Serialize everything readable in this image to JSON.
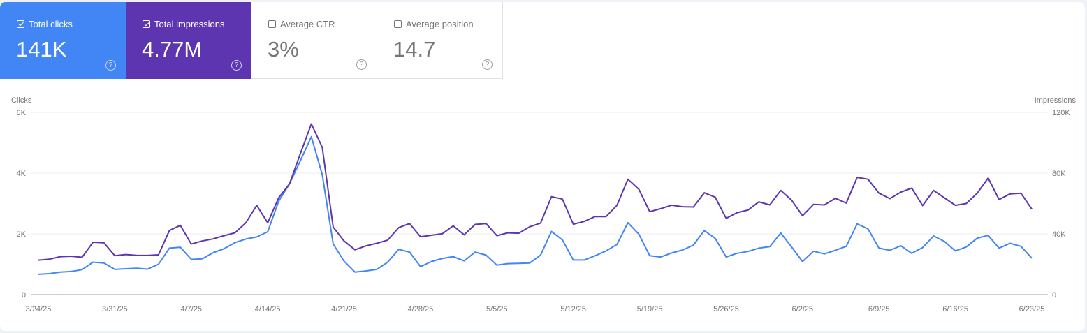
{
  "metrics": [
    {
      "label": "Total clicks",
      "value": "141K",
      "checked": true,
      "color": "#4285f4"
    },
    {
      "label": "Total impressions",
      "value": "4.77M",
      "checked": true,
      "color": "#5e35b1"
    },
    {
      "label": "Average CTR",
      "value": "3%",
      "checked": false
    },
    {
      "label": "Average position",
      "value": "14.7",
      "checked": false
    }
  ],
  "help_icon": "?",
  "chart_data": {
    "type": "line",
    "x_start": "3/24/25",
    "x_end": "6/23/25",
    "x_tick_labels": [
      "3/24/25",
      "3/31/25",
      "4/7/25",
      "4/14/25",
      "4/21/25",
      "4/28/25",
      "5/5/25",
      "5/12/25",
      "5/19/25",
      "5/26/25",
      "6/2/25",
      "6/9/25",
      "6/16/25",
      "6/23/25"
    ],
    "left_axis": {
      "label": "Clicks",
      "ylim": [
        0,
        6000
      ],
      "tick_labels": [
        "0",
        "2K",
        "4K",
        "6K"
      ]
    },
    "right_axis": {
      "label": "Impressions",
      "ylim": [
        0,
        120000
      ],
      "tick_labels": [
        "0",
        "40K",
        "80K",
        "120K"
      ]
    },
    "grid": true,
    "series": [
      {
        "name": "Clicks",
        "axis": "left",
        "color": "#4285f4",
        "values": [
          670,
          690,
          740,
          760,
          820,
          1070,
          1040,
          830,
          850,
          870,
          840,
          1000,
          1530,
          1560,
          1160,
          1180,
          1380,
          1510,
          1710,
          1830,
          1900,
          2070,
          3070,
          3650,
          4410,
          5200,
          3950,
          1670,
          1100,
          740,
          780,
          830,
          1070,
          1490,
          1400,
          920,
          1090,
          1190,
          1250,
          1110,
          1400,
          1300,
          970,
          1020,
          1030,
          1040,
          1300,
          2080,
          1800,
          1140,
          1140,
          1280,
          1440,
          1650,
          2370,
          1990,
          1280,
          1240,
          1370,
          1470,
          1630,
          2110,
          1850,
          1240,
          1360,
          1420,
          1530,
          1580,
          2030,
          1570,
          1090,
          1430,
          1340,
          1460,
          1590,
          2330,
          2160,
          1530,
          1460,
          1610,
          1360,
          1550,
          1930,
          1750,
          1440,
          1570,
          1860,
          1950,
          1530,
          1690,
          1590,
          1200
        ]
      },
      {
        "name": "Impressions",
        "axis": "right",
        "color": "#5e35b1",
        "values": [
          22700,
          23300,
          25000,
          25300,
          24600,
          34500,
          34100,
          25600,
          26400,
          25900,
          25800,
          26200,
          42200,
          45600,
          33300,
          35300,
          36700,
          38800,
          40700,
          47300,
          58800,
          47300,
          63700,
          72900,
          92900,
          112400,
          97000,
          44500,
          35300,
          29500,
          32100,
          33800,
          35900,
          44100,
          46800,
          38100,
          39100,
          40100,
          45300,
          39400,
          46200,
          46800,
          38800,
          40700,
          40400,
          44700,
          47100,
          64500,
          62900,
          46400,
          48200,
          51400,
          51400,
          58800,
          76000,
          69400,
          54600,
          56600,
          58900,
          57900,
          57700,
          67100,
          64200,
          50200,
          54000,
          55700,
          61100,
          59100,
          68600,
          62200,
          51900,
          59400,
          59100,
          63400,
          60300,
          77200,
          76000,
          66800,
          63200,
          67500,
          70100,
          58600,
          68600,
          63700,
          58800,
          60000,
          66800,
          76800,
          62600,
          66300,
          66800,
          56300
        ]
      }
    ]
  }
}
